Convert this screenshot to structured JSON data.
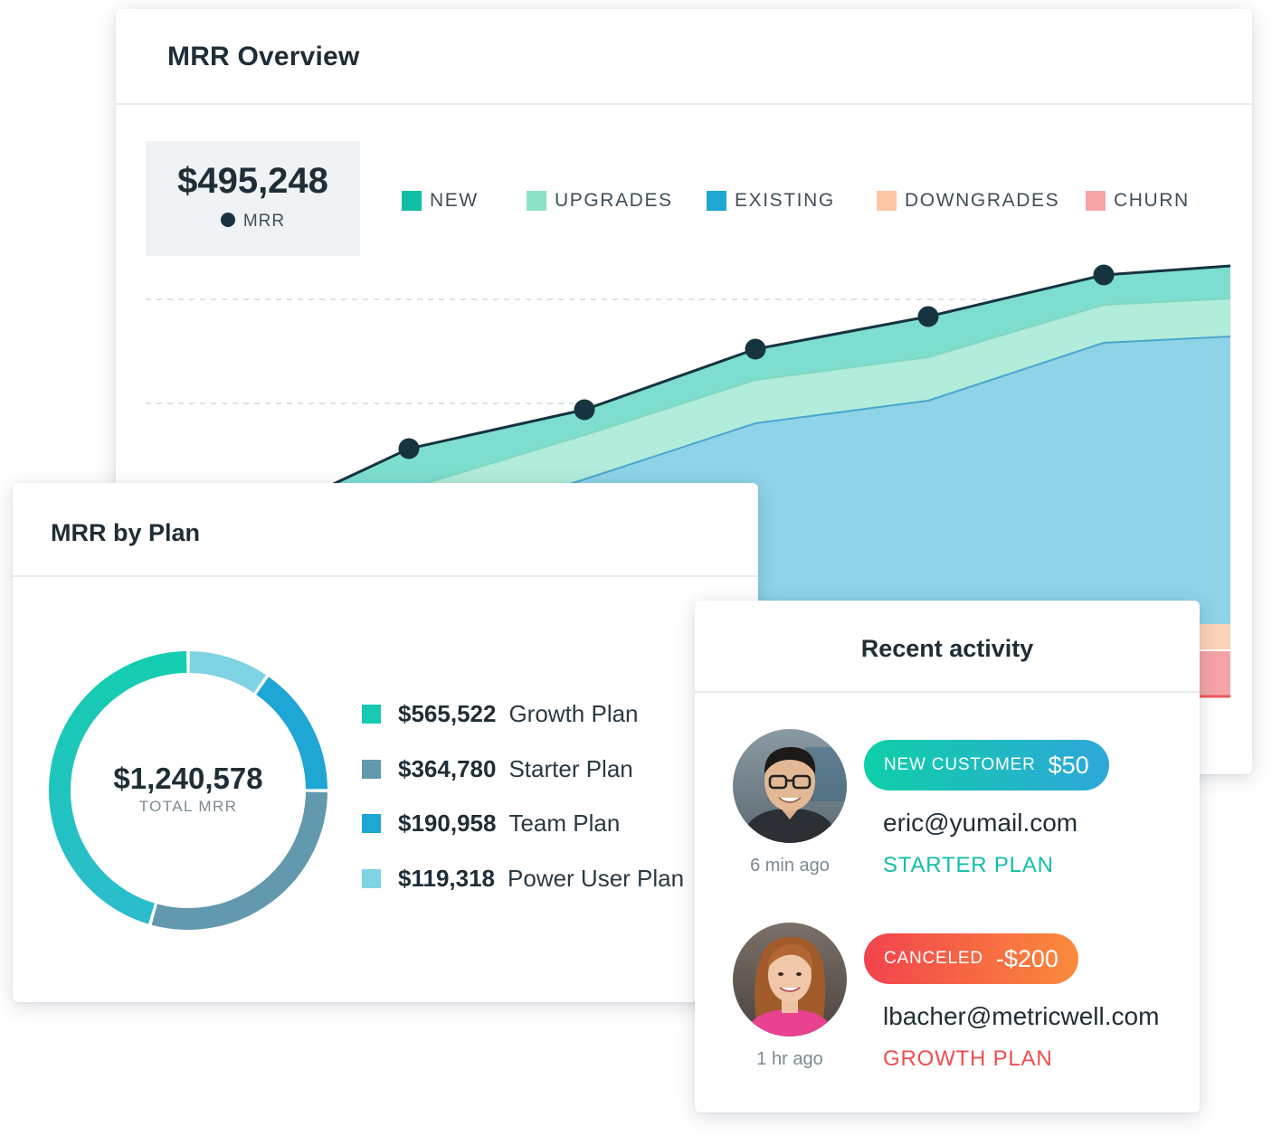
{
  "overview": {
    "title": "MRR Overview",
    "kpi": {
      "value": "$495,248",
      "label": "MRR",
      "dot_color": "#18333f"
    },
    "legend": [
      {
        "label": "NEW",
        "color": "#0fbea4"
      },
      {
        "label": "UPGRADES",
        "color": "#8de3c7"
      },
      {
        "label": "EXISTING",
        "color": "#1ea6d4"
      },
      {
        "label": "DOWNGRADES",
        "color": "#fcc6a4"
      },
      {
        "label": "CHURN",
        "color": "#f7a4a6"
      }
    ]
  },
  "chart_data": {
    "type": "area",
    "series": [
      {
        "name": "EXISTING",
        "color": "#1ea6d4"
      },
      {
        "name": "UPGRADES",
        "color": "#8de3c7"
      },
      {
        "name": "NEW",
        "color": "#0fbea4"
      },
      {
        "name": "MRR",
        "color": "#18333f"
      },
      {
        "name": "DOWNGRADES",
        "color": "#fcc6a4"
      },
      {
        "name": "CHURN",
        "color": "#f7a4a6"
      }
    ],
    "grid": "dashed horizontal"
  },
  "by_plan": {
    "title": "MRR by Plan",
    "total_value": "$1,240,578",
    "total_label": "TOTAL MRR",
    "plans": [
      {
        "value": "$565,522",
        "name": "Growth Plan",
        "amount": 565522,
        "color": "#18c9b3"
      },
      {
        "value": "$364,780",
        "name": "Starter Plan",
        "amount": 364780,
        "color": "#6399ae"
      },
      {
        "value": "$190,958",
        "name": "Team Plan",
        "amount": 190958,
        "color": "#1ea6d4"
      },
      {
        "value": "$119,318",
        "name": "Power User Plan",
        "amount": 119318,
        "color": "#7fd3e2"
      }
    ]
  },
  "activity": {
    "title": "Recent activity",
    "items": [
      {
        "badge_type": "NEW CUSTOMER",
        "badge_amount": "$50",
        "email": "eric@yumail.com",
        "plan": "STARTER PLAN",
        "time": "6 min ago",
        "plan_color": "#12bfa6",
        "badge_from": "#0fcfa8",
        "badge_to": "#2ea7d9"
      },
      {
        "badge_type": "CANCELED",
        "badge_amount": "-$200",
        "email": "lbacher@metricwell.com",
        "plan": "GROWTH PLAN",
        "time": "1 hr ago",
        "plan_color": "#ef4d4d",
        "badge_from": "#f2434e",
        "badge_to": "#fb8b3a"
      }
    ]
  }
}
